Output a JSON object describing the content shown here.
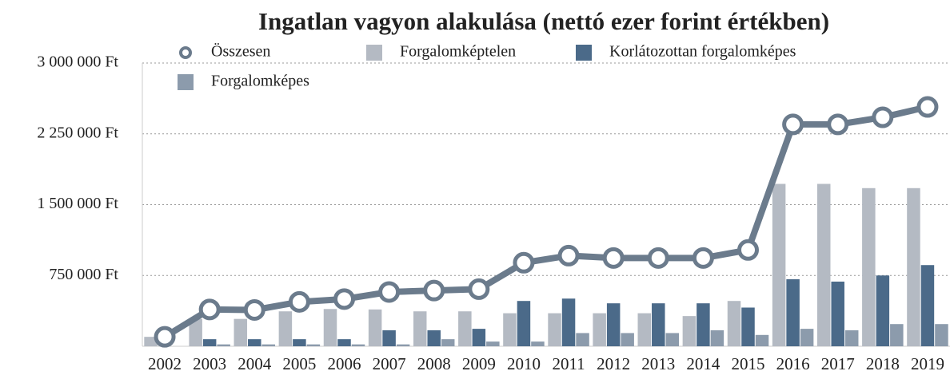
{
  "chart_data": {
    "type": "bar",
    "title": "Ingatlan vagyon alakulása (nettó ezer forint értékben)",
    "categories": [
      "2002",
      "2003",
      "2004",
      "2005",
      "2006",
      "2007",
      "2008",
      "2009",
      "2010",
      "2011",
      "2012",
      "2013",
      "2014",
      "2015",
      "2016",
      "2017",
      "2018",
      "2019"
    ],
    "series": [
      {
        "name": "Összesen",
        "type": "line",
        "color": "#6b7b8c",
        "values": [
          100000,
          390000,
          385000,
          470000,
          500000,
          575000,
          590000,
          605000,
          885000,
          960000,
          935000,
          935000,
          935000,
          1020000,
          2350000,
          2350000,
          2425000,
          2535000
        ]
      },
      {
        "name": "Forgalomképtelen",
        "color": "#b4bac3",
        "values": [
          100000,
          290000,
          290000,
          370000,
          395000,
          390000,
          370000,
          370000,
          350000,
          350000,
          350000,
          350000,
          320000,
          480000,
          1720000,
          1720000,
          1675000,
          1675000
        ]
      },
      {
        "name": "Korlátozottan forgalomképes",
        "color": "#4b6a89",
        "values": [
          0,
          75000,
          75000,
          75000,
          75000,
          170000,
          170000,
          185000,
          480000,
          505000,
          455000,
          455000,
          455000,
          410000,
          710000,
          685000,
          750000,
          860000
        ]
      },
      {
        "name": "Forgalomképes",
        "color": "#8c9bac",
        "values": [
          0,
          20000,
          20000,
          20000,
          20000,
          20000,
          75000,
          50000,
          50000,
          140000,
          140000,
          140000,
          170000,
          120000,
          185000,
          170000,
          235000,
          235000
        ]
      }
    ],
    "ylim": [
      0,
      3000000
    ],
    "yticks": [
      {
        "value": 750000,
        "label": "750 000 Ft"
      },
      {
        "value": 1500000,
        "label": "1 500 000 Ft"
      },
      {
        "value": 2250000,
        "label": "2 250 000 Ft"
      },
      {
        "value": 3000000,
        "label": "3 000 000 Ft"
      }
    ],
    "grid": true
  }
}
